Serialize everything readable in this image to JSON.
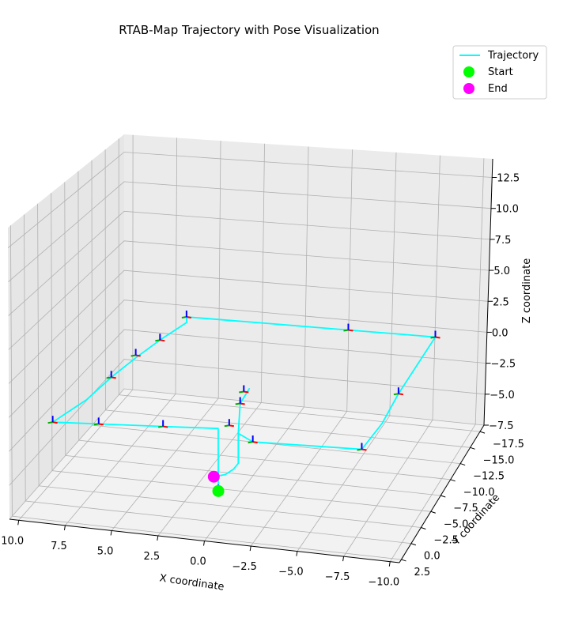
{
  "chart_data": {
    "type": "line",
    "title": "RTAB-Map Trajectory with Pose Visualization",
    "xlabel": "X coordinate",
    "ylabel": "Y coordinate",
    "zlabel": "Z coordinate",
    "xlim": [
      10.5,
      -10.5
    ],
    "ylim": [
      3.0,
      -18.5
    ],
    "zlim": [
      -7.5,
      14.0
    ],
    "grid": true,
    "legend_position": "top-right",
    "x_ticks": [
      "10.0",
      "7.5",
      "5.0",
      "2.5",
      "0.0",
      "−2.5",
      "−5.0",
      "−7.5",
      "−10.0"
    ],
    "y_ticks": [
      "2.5",
      "0.0",
      "−2.5",
      "−5.0",
      "−7.5",
      "−10.0",
      "−12.5",
      "−15.0",
      "−17.5"
    ],
    "z_ticks": [
      "−7.5",
      "−5.0",
      "−2.5",
      "0.0",
      "2.5",
      "5.0",
      "7.5",
      "10.0",
      "12.5"
    ],
    "x_tick_values": [
      10,
      7.5,
      5,
      2.5,
      0,
      -2.5,
      -5,
      -7.5,
      -10
    ],
    "y_tick_values": [
      2.5,
      0,
      -2.5,
      -5,
      -7.5,
      -10,
      -12.5,
      -15,
      -17.5
    ],
    "z_tick_values": [
      -7.5,
      -5,
      -2.5,
      0,
      2.5,
      5,
      7.5,
      10,
      12.5
    ],
    "legend": [
      {
        "label": "Trajectory",
        "kind": "line",
        "color": "#00ffff"
      },
      {
        "label": "Start",
        "kind": "marker",
        "color": "#00ff00"
      },
      {
        "label": "End",
        "kind": "marker",
        "color": "#ff00ff"
      }
    ],
    "series": [
      {
        "name": "Trajectory",
        "color": "#00ffff",
        "points": [
          [
            0.0,
            0.0,
            -5.5
          ],
          [
            0.0,
            0.0,
            -3.5
          ],
          [
            0.0,
            0.0,
            -1.5
          ],
          [
            3.0,
            0.0,
            -1.5
          ],
          [
            6.5,
            0.0,
            -1.5
          ],
          [
            9.0,
            0.0,
            -1.5
          ],
          [
            8.0,
            -3.0,
            -1.0
          ],
          [
            7.5,
            -6.0,
            -0.5
          ],
          [
            7.0,
            -9.0,
            -0.2
          ],
          [
            6.5,
            -12.0,
            0.0
          ],
          [
            6.0,
            -15.5,
            0.0
          ],
          [
            6.3,
            -16.5,
            0.0
          ],
          [
            5.0,
            -16.5,
            0.0
          ],
          [
            1.0,
            -16.5,
            0.0
          ],
          [
            -3.0,
            -16.5,
            0.0
          ],
          [
            -6.0,
            -16.5,
            0.0
          ],
          [
            -8.0,
            -16.5,
            0.0
          ],
          [
            -7.8,
            -13.0,
            -1.0
          ],
          [
            -7.5,
            -10.0,
            -2.0
          ],
          [
            -7.3,
            -7.0,
            -3.0
          ],
          [
            -7.0,
            -3.5,
            -3.5
          ],
          [
            -4.0,
            -3.5,
            -3.5
          ],
          [
            -1.0,
            -3.5,
            -3.5
          ],
          [
            -0.2,
            -3.5,
            -3.0
          ],
          [
            -0.3,
            -3.5,
            -1.0
          ],
          [
            -0.8,
            -3.5,
            0.0
          ],
          [
            -0.3,
            -3.5,
            -1.0
          ],
          [
            -0.2,
            -3.5,
            -3.0
          ],
          [
            -0.2,
            -3.5,
            -5.0
          ],
          [
            -0.2,
            -2.5,
            -5.0
          ],
          [
            0.0,
            -1.5,
            -5.0
          ],
          [
            0.5,
            -1.0,
            -5.0
          ]
        ]
      }
    ],
    "start": [
      0.0,
      0.0,
      -5.5
    ],
    "end": [
      0.5,
      -1.0,
      -5.0
    ],
    "pose_markers": [
      [
        0.0,
        0.0,
        -5.5
      ],
      [
        3.0,
        0.0,
        -1.5
      ],
      [
        6.5,
        0.0,
        -1.5
      ],
      [
        9.0,
        0.0,
        -1.5
      ],
      [
        7.5,
        -6.0,
        -0.5
      ],
      [
        7.0,
        -9.0,
        0.0
      ],
      [
        6.5,
        -12.0,
        0.0
      ],
      [
        6.3,
        -16.5,
        0.0
      ],
      [
        -3.0,
        -16.5,
        0.0
      ],
      [
        -8.0,
        -16.5,
        0.0
      ],
      [
        -7.5,
        -10.0,
        -2.0
      ],
      [
        -7.0,
        -3.5,
        -3.5
      ],
      [
        -1.0,
        -3.5,
        -3.5
      ],
      [
        -0.3,
        -3.5,
        -1.0
      ],
      [
        -0.5,
        -3.5,
        -0.2
      ],
      [
        0.3,
        -3.5,
        -2.5
      ]
    ]
  },
  "colors": {
    "trajectory": "#00ffff",
    "start": "#00ff00",
    "end": "#ff00ff",
    "pane": "#f2f2f2",
    "grid": "#b0b0b0",
    "pose_x": "#ff0000",
    "pose_y": "#00aa00",
    "pose_z": "#0000ff"
  }
}
